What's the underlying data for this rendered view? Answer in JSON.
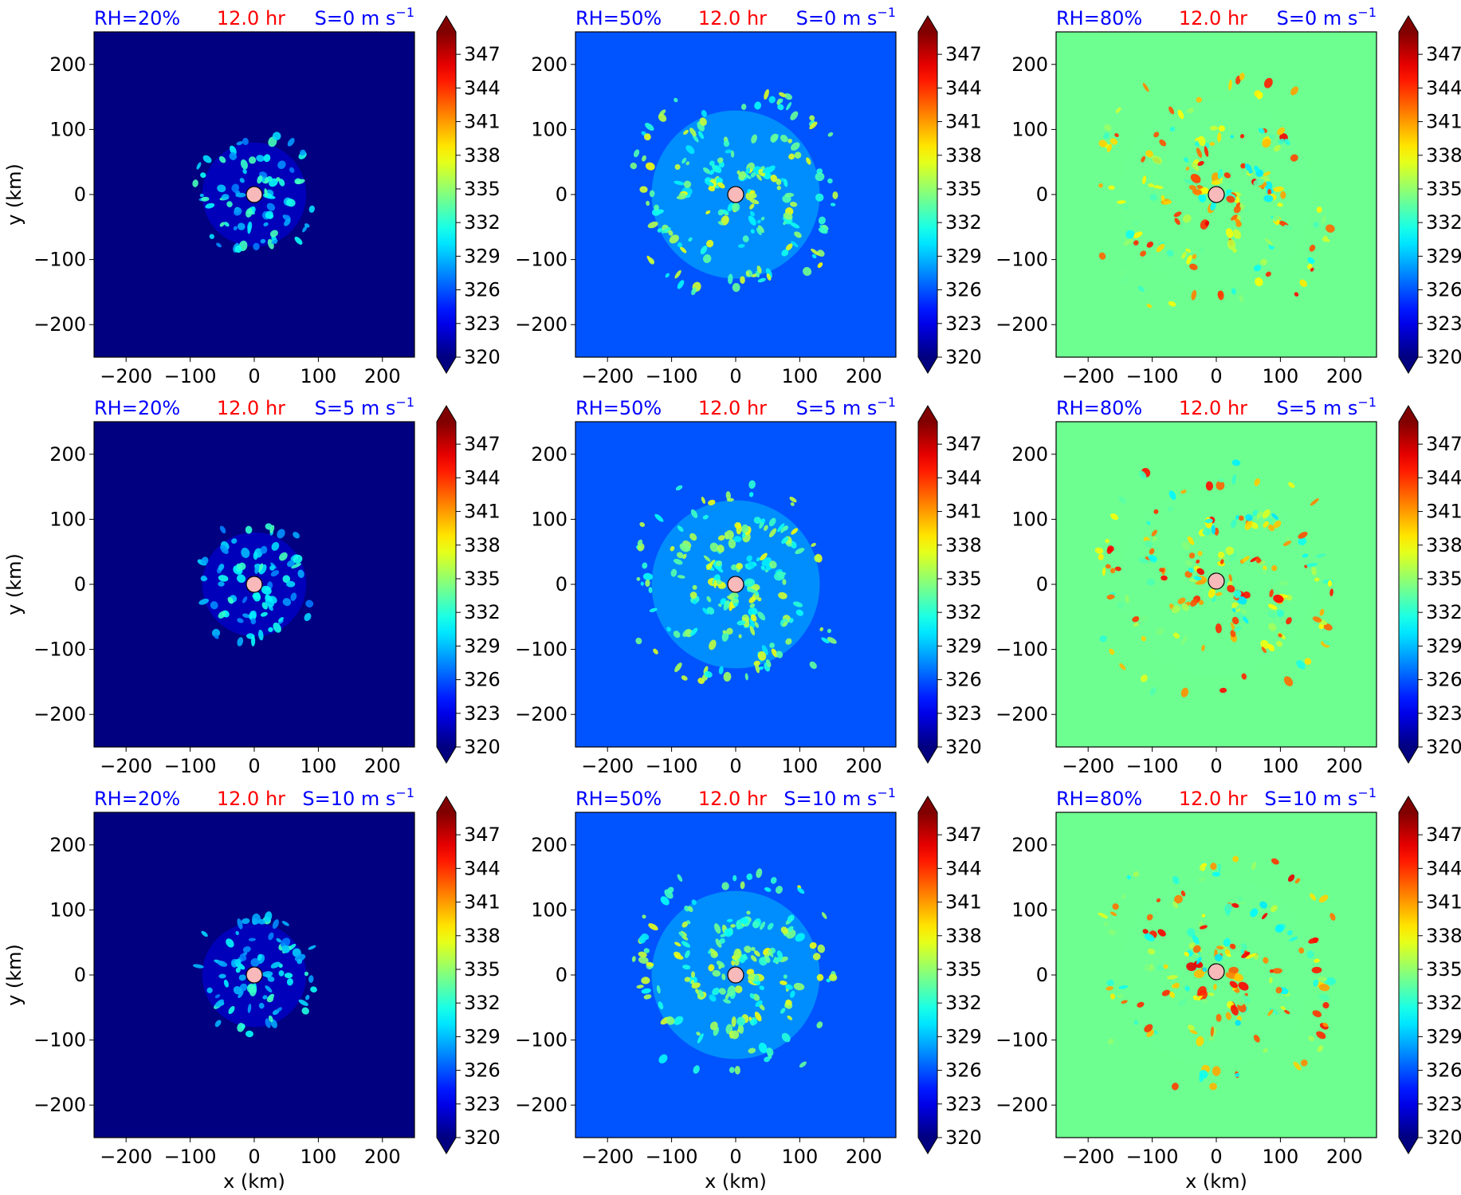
{
  "figure": {
    "colorbar_ticks": [
      "347",
      "344",
      "341",
      "338",
      "335",
      "332",
      "329",
      "326",
      "323",
      "320"
    ],
    "colorbar_range": [
      320,
      349
    ],
    "colors": {
      "title_blue": "#0000ff",
      "title_red": "#ff0000",
      "center_marker": "#f7b9b9",
      "rh20_background": "#00007f",
      "rh50_background": "#0044ff",
      "rh80_background": "#72ff82"
    },
    "center_marker_icon": "circle-marker-icon"
  },
  "chart_data": [
    {
      "type": "heatmap",
      "rh": "RH=20%",
      "time": "12.0 hr",
      "shear": "S=0 m s",
      "shear_sup": "−1",
      "xlabel": "",
      "ylabel": "y (km)",
      "xlim": [
        -250,
        250
      ],
      "ylim": [
        -250,
        250
      ],
      "x_ticks": [
        "−200",
        "−100",
        "0",
        "100",
        "200"
      ],
      "y_ticks": [
        "200",
        "100",
        "0",
        "−100",
        "−200"
      ],
      "background_value": 320,
      "center": [
        0,
        0
      ]
    },
    {
      "type": "heatmap",
      "rh": "RH=50%",
      "time": "12.0 hr",
      "shear": "S=0 m s",
      "shear_sup": "−1",
      "xlabel": "",
      "ylabel": "",
      "xlim": [
        -250,
        250
      ],
      "ylim": [
        -250,
        250
      ],
      "x_ticks": [
        "−200",
        "−100",
        "0",
        "100",
        "200"
      ],
      "y_ticks": [
        "200",
        "100",
        "0",
        "−100",
        "−200"
      ],
      "background_value": 326,
      "center": [
        0,
        0
      ]
    },
    {
      "type": "heatmap",
      "rh": "RH=80%",
      "time": "12.0 hr",
      "shear": "S=0 m s",
      "shear_sup": "−1",
      "xlabel": "",
      "ylabel": "",
      "xlim": [
        -250,
        250
      ],
      "ylim": [
        -250,
        250
      ],
      "x_ticks": [
        "−200",
        "−100",
        "0",
        "100",
        "200"
      ],
      "y_ticks": [
        "200",
        "100",
        "0",
        "−100",
        "−200"
      ],
      "background_value": 334,
      "center": [
        0,
        0
      ]
    },
    {
      "type": "heatmap",
      "rh": "RH=20%",
      "time": "12.0 hr",
      "shear": "S=5 m s",
      "shear_sup": "−1",
      "xlabel": "",
      "ylabel": "y (km)",
      "xlim": [
        -250,
        250
      ],
      "ylim": [
        -250,
        250
      ],
      "x_ticks": [
        "−200",
        "−100",
        "0",
        "100",
        "200"
      ],
      "y_ticks": [
        "200",
        "100",
        "0",
        "−100",
        "−200"
      ],
      "background_value": 320,
      "center": [
        0,
        0
      ]
    },
    {
      "type": "heatmap",
      "rh": "RH=50%",
      "time": "12.0 hr",
      "shear": "S=5 m s",
      "shear_sup": "−1",
      "xlabel": "",
      "ylabel": "",
      "xlim": [
        -250,
        250
      ],
      "ylim": [
        -250,
        250
      ],
      "x_ticks": [
        "−200",
        "−100",
        "0",
        "100",
        "200"
      ],
      "y_ticks": [
        "200",
        "100",
        "0",
        "−100",
        "−200"
      ],
      "background_value": 326,
      "center": [
        0,
        0
      ]
    },
    {
      "type": "heatmap",
      "rh": "RH=80%",
      "time": "12.0 hr",
      "shear": "S=5 m s",
      "shear_sup": "−1",
      "xlabel": "",
      "ylabel": "",
      "xlim": [
        -250,
        250
      ],
      "ylim": [
        -250,
        250
      ],
      "x_ticks": [
        "−200",
        "−100",
        "0",
        "100",
        "200"
      ],
      "y_ticks": [
        "200",
        "100",
        "0",
        "−100",
        "−200"
      ],
      "background_value": 334,
      "center": [
        0,
        5
      ]
    },
    {
      "type": "heatmap",
      "rh": "RH=20%",
      "time": "12.0 hr",
      "shear": "S=10 m s",
      "shear_sup": "−1",
      "xlabel": "x (km)",
      "ylabel": "y (km)",
      "xlim": [
        -250,
        250
      ],
      "ylim": [
        -250,
        250
      ],
      "x_ticks": [
        "−200",
        "−100",
        "0",
        "100",
        "200"
      ],
      "y_ticks": [
        "200",
        "100",
        "0",
        "−100",
        "−200"
      ],
      "background_value": 320,
      "center": [
        0,
        0
      ]
    },
    {
      "type": "heatmap",
      "rh": "RH=50%",
      "time": "12.0 hr",
      "shear": "S=10 m s",
      "shear_sup": "−1",
      "xlabel": "x (km)",
      "ylabel": "",
      "xlim": [
        -250,
        250
      ],
      "ylim": [
        -250,
        250
      ],
      "x_ticks": [
        "−200",
        "−100",
        "0",
        "100",
        "200"
      ],
      "y_ticks": [
        "200",
        "100",
        "0",
        "−100",
        "−200"
      ],
      "background_value": 326,
      "center": [
        0,
        0
      ]
    },
    {
      "type": "heatmap",
      "rh": "RH=80%",
      "time": "12.0 hr",
      "shear": "S=10 m s",
      "shear_sup": "−1",
      "xlabel": "x (km)",
      "ylabel": "",
      "xlim": [
        -250,
        250
      ],
      "ylim": [
        -250,
        250
      ],
      "x_ticks": [
        "−200",
        "−100",
        "0",
        "100",
        "200"
      ],
      "y_ticks": [
        "200",
        "100",
        "0",
        "−100",
        "−200"
      ],
      "background_value": 334,
      "center": [
        0,
        5
      ]
    }
  ]
}
